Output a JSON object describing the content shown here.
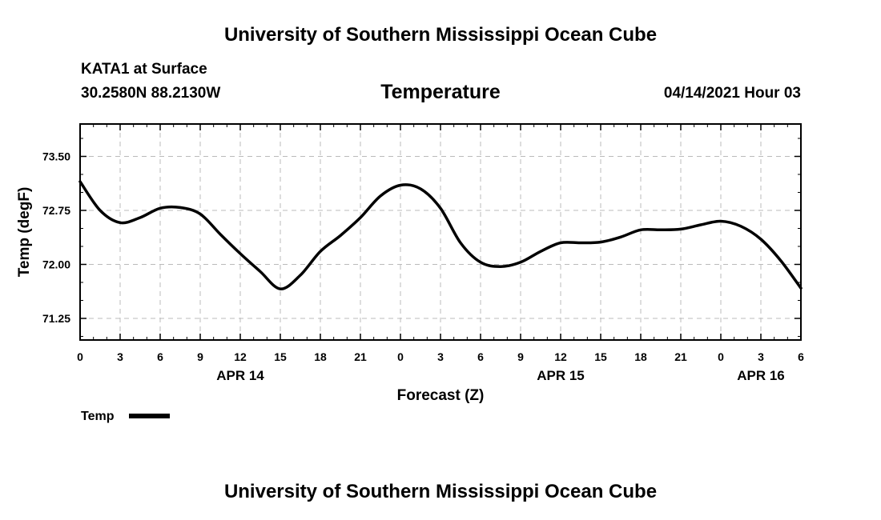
{
  "header_title": "University of Southern Mississippi Ocean Cube",
  "footer_title": "University of Southern Mississippi Ocean Cube",
  "station": "KATA1 at Surface",
  "location": "30.2580N  88.2130W",
  "run_time": "04/14/2021 Hour 03",
  "colors": {
    "line": "#000000",
    "grid": "#bbbbbb",
    "frame": "#000000"
  },
  "chart_data": {
    "type": "line",
    "title": "Temperature",
    "xlabel": "Forecast (Z)",
    "ylabel": "Temp (degF)",
    "xlim": [
      0,
      54
    ],
    "ylim": [
      70.95,
      73.95
    ],
    "grid": true,
    "legend_position": "bottom-left",
    "x_ticks": [
      0,
      3,
      6,
      9,
      12,
      15,
      18,
      21,
      24,
      27,
      30,
      33,
      36,
      39,
      42,
      45,
      48,
      51,
      54
    ],
    "x_tick_labels": [
      "0",
      "3",
      "6",
      "9",
      "12",
      "15",
      "18",
      "21",
      "0",
      "3",
      "6",
      "9",
      "12",
      "15",
      "18",
      "21",
      "0",
      "3",
      "6"
    ],
    "y_ticks": [
      71.25,
      72.0,
      72.75,
      73.5
    ],
    "y_tick_labels": [
      "71.25",
      "72.00",
      "72.75",
      "73.50"
    ],
    "date_labels": [
      {
        "x": 12,
        "label": "APR 14"
      },
      {
        "x": 36,
        "label": "APR 15"
      },
      {
        "x": 51,
        "label": "APR 16"
      }
    ],
    "series": [
      {
        "name": "Temp",
        "x": [
          0,
          1.5,
          3,
          4.5,
          6,
          7.5,
          9,
          10.5,
          12,
          13.5,
          15,
          16.5,
          18,
          19.5,
          21,
          22.5,
          24,
          25.5,
          27,
          28.5,
          30,
          31.5,
          33,
          34.5,
          36,
          37.5,
          39,
          40.5,
          42,
          43.5,
          45,
          46.5,
          48,
          49.5,
          51,
          52.5,
          54
        ],
        "values": [
          73.15,
          72.75,
          72.58,
          72.65,
          72.78,
          72.79,
          72.7,
          72.42,
          72.15,
          71.9,
          71.66,
          71.85,
          72.18,
          72.4,
          72.65,
          72.95,
          73.1,
          73.05,
          72.78,
          72.3,
          72.03,
          71.97,
          72.03,
          72.18,
          72.3,
          72.3,
          72.31,
          72.38,
          72.48,
          72.48,
          72.49,
          72.55,
          72.6,
          72.53,
          72.35,
          72.05,
          71.67
        ]
      }
    ]
  }
}
